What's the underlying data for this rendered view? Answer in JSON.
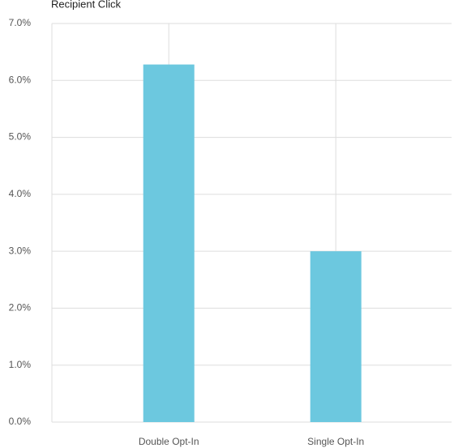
{
  "chart_data": {
    "type": "bar",
    "title": "Recipient Click",
    "categories": [
      "Double Opt-In",
      "Single Opt-In"
    ],
    "values": [
      6.28,
      3.0
    ],
    "color": "#6cc8df",
    "ylim": [
      0,
      7
    ],
    "yticks": [
      {
        "value": 0,
        "label": "0.0%"
      },
      {
        "value": 1,
        "label": "1.0%"
      },
      {
        "value": 2,
        "label": "2.0%"
      },
      {
        "value": 3,
        "label": "3.0%"
      },
      {
        "value": 4,
        "label": "4.0%"
      },
      {
        "value": 5,
        "label": "5.0%"
      },
      {
        "value": 6,
        "label": "6.0%"
      },
      {
        "value": 7,
        "label": "7.0%"
      }
    ],
    "grid": true
  }
}
